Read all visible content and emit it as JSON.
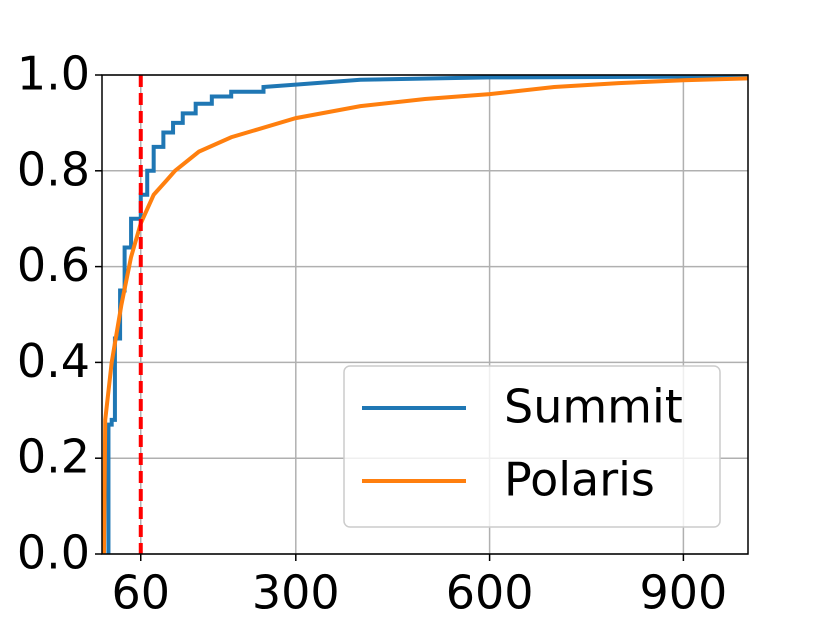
{
  "chart_data": {
    "type": "line",
    "series": [
      {
        "name": "Summit",
        "color": "#1f77b4",
        "x": [
          10,
          10,
          15,
          15,
          20,
          20,
          28,
          28,
          35,
          35,
          45,
          45,
          60,
          60,
          70,
          70,
          80,
          80,
          95,
          95,
          110,
          110,
          125,
          125,
          145,
          145,
          170,
          170,
          200,
          200,
          250,
          250,
          300,
          400,
          600,
          1000
        ],
        "values": [
          0,
          0.27,
          0.27,
          0.28,
          0.28,
          0.45,
          0.45,
          0.55,
          0.55,
          0.64,
          0.64,
          0.7,
          0.7,
          0.75,
          0.75,
          0.8,
          0.8,
          0.85,
          0.85,
          0.88,
          0.88,
          0.9,
          0.9,
          0.92,
          0.92,
          0.94,
          0.94,
          0.955,
          0.955,
          0.965,
          0.965,
          0.975,
          0.98,
          0.99,
          0.995,
          0.997
        ]
      },
      {
        "name": "Polaris",
        "color": "#ff7f0e",
        "x": [
          3,
          5,
          15,
          30,
          45,
          60,
          80,
          100,
          113,
          150,
          200,
          300,
          400,
          500,
          600,
          700,
          800,
          900,
          1000
        ],
        "values": [
          0,
          0.28,
          0.4,
          0.52,
          0.62,
          0.69,
          0.75,
          0.78,
          0.8,
          0.84,
          0.87,
          0.91,
          0.935,
          0.95,
          0.96,
          0.975,
          0.983,
          0.989,
          0.993
        ]
      }
    ],
    "vline": {
      "x": 60,
      "color": "#ff0000"
    },
    "xlim": [
      0,
      1000
    ],
    "xticks": [
      60,
      300,
      600,
      900
    ],
    "ylim": [
      0,
      1
    ],
    "yticks": [
      {
        "value": 0,
        "label": "0.0"
      },
      0.2,
      0.4,
      0.6,
      0.8,
      {
        "value": 1,
        "label": "1.0"
      }
    ],
    "grid": true,
    "legend": "lower right"
  }
}
